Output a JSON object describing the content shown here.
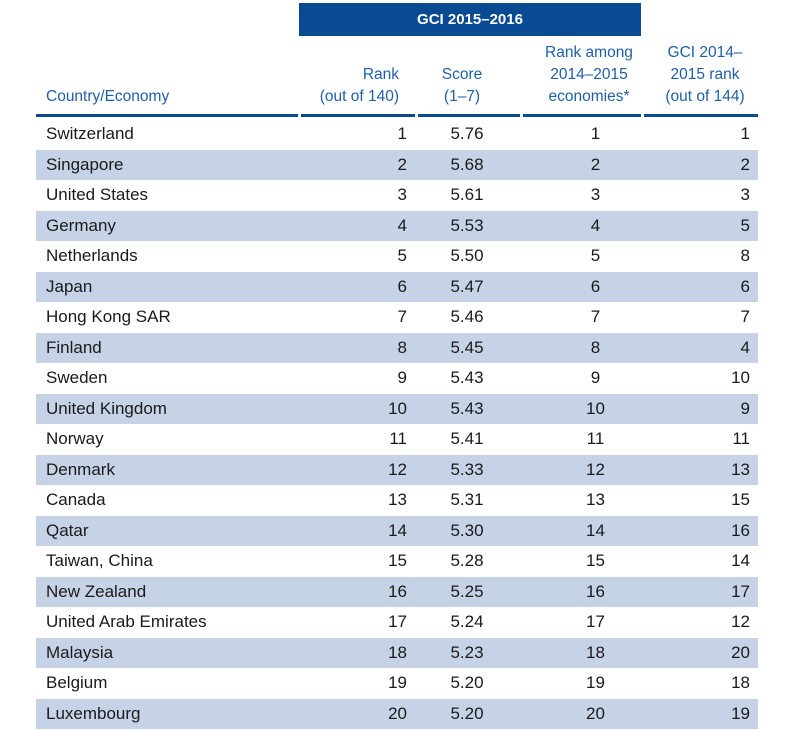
{
  "header": {
    "band": "GCI 2015–2016",
    "country_line1": "Country/Economy",
    "rank_line1": "Rank",
    "rank_line2": "(out of 140)",
    "score_line1": "Score",
    "score_line2": "(1–7)",
    "among_line1": "Rank among",
    "among_line2": "2014–2015",
    "among_line3": "economies*",
    "prev_line1": "GCI 2014–",
    "prev_line2": "2015 rank",
    "prev_line3": "(out of 144)"
  },
  "colors": {
    "band": "#0a4a93",
    "header_text": "#1f5fa8",
    "shade": "#c6d3e7"
  },
  "rows": [
    {
      "country": "Switzerland",
      "rank": "1",
      "score": "5.76",
      "among": "1",
      "prev": "1"
    },
    {
      "country": "Singapore",
      "rank": "2",
      "score": "5.68",
      "among": "2",
      "prev": "2"
    },
    {
      "country": "United States",
      "rank": "3",
      "score": "5.61",
      "among": "3",
      "prev": "3"
    },
    {
      "country": "Germany",
      "rank": "4",
      "score": "5.53",
      "among": "4",
      "prev": "5"
    },
    {
      "country": "Netherlands",
      "rank": "5",
      "score": "5.50",
      "among": "5",
      "prev": "8"
    },
    {
      "country": "Japan",
      "rank": "6",
      "score": "5.47",
      "among": "6",
      "prev": "6"
    },
    {
      "country": "Hong Kong SAR",
      "rank": "7",
      "score": "5.46",
      "among": "7",
      "prev": "7"
    },
    {
      "country": "Finland",
      "rank": "8",
      "score": "5.45",
      "among": "8",
      "prev": "4"
    },
    {
      "country": "Sweden",
      "rank": "9",
      "score": "5.43",
      "among": "9",
      "prev": "10"
    },
    {
      "country": "United Kingdom",
      "rank": "10",
      "score": "5.43",
      "among": "10",
      "prev": "9"
    },
    {
      "country": "Norway",
      "rank": "11",
      "score": "5.41",
      "among": "11",
      "prev": "11"
    },
    {
      "country": "Denmark",
      "rank": "12",
      "score": "5.33",
      "among": "12",
      "prev": "13"
    },
    {
      "country": "Canada",
      "rank": "13",
      "score": "5.31",
      "among": "13",
      "prev": "15"
    },
    {
      "country": "Qatar",
      "rank": "14",
      "score": "5.30",
      "among": "14",
      "prev": "16"
    },
    {
      "country": "Taiwan, China",
      "rank": "15",
      "score": "5.28",
      "among": "15",
      "prev": "14"
    },
    {
      "country": "New Zealand",
      "rank": "16",
      "score": "5.25",
      "among": "16",
      "prev": "17"
    },
    {
      "country": "United Arab Emirates",
      "rank": "17",
      "score": "5.24",
      "among": "17",
      "prev": "12"
    },
    {
      "country": "Malaysia",
      "rank": "18",
      "score": "5.23",
      "among": "18",
      "prev": "20"
    },
    {
      "country": "Belgium",
      "rank": "19",
      "score": "5.20",
      "among": "19",
      "prev": "18"
    },
    {
      "country": "Luxembourg",
      "rank": "20",
      "score": "5.20",
      "among": "20",
      "prev": "19"
    }
  ]
}
